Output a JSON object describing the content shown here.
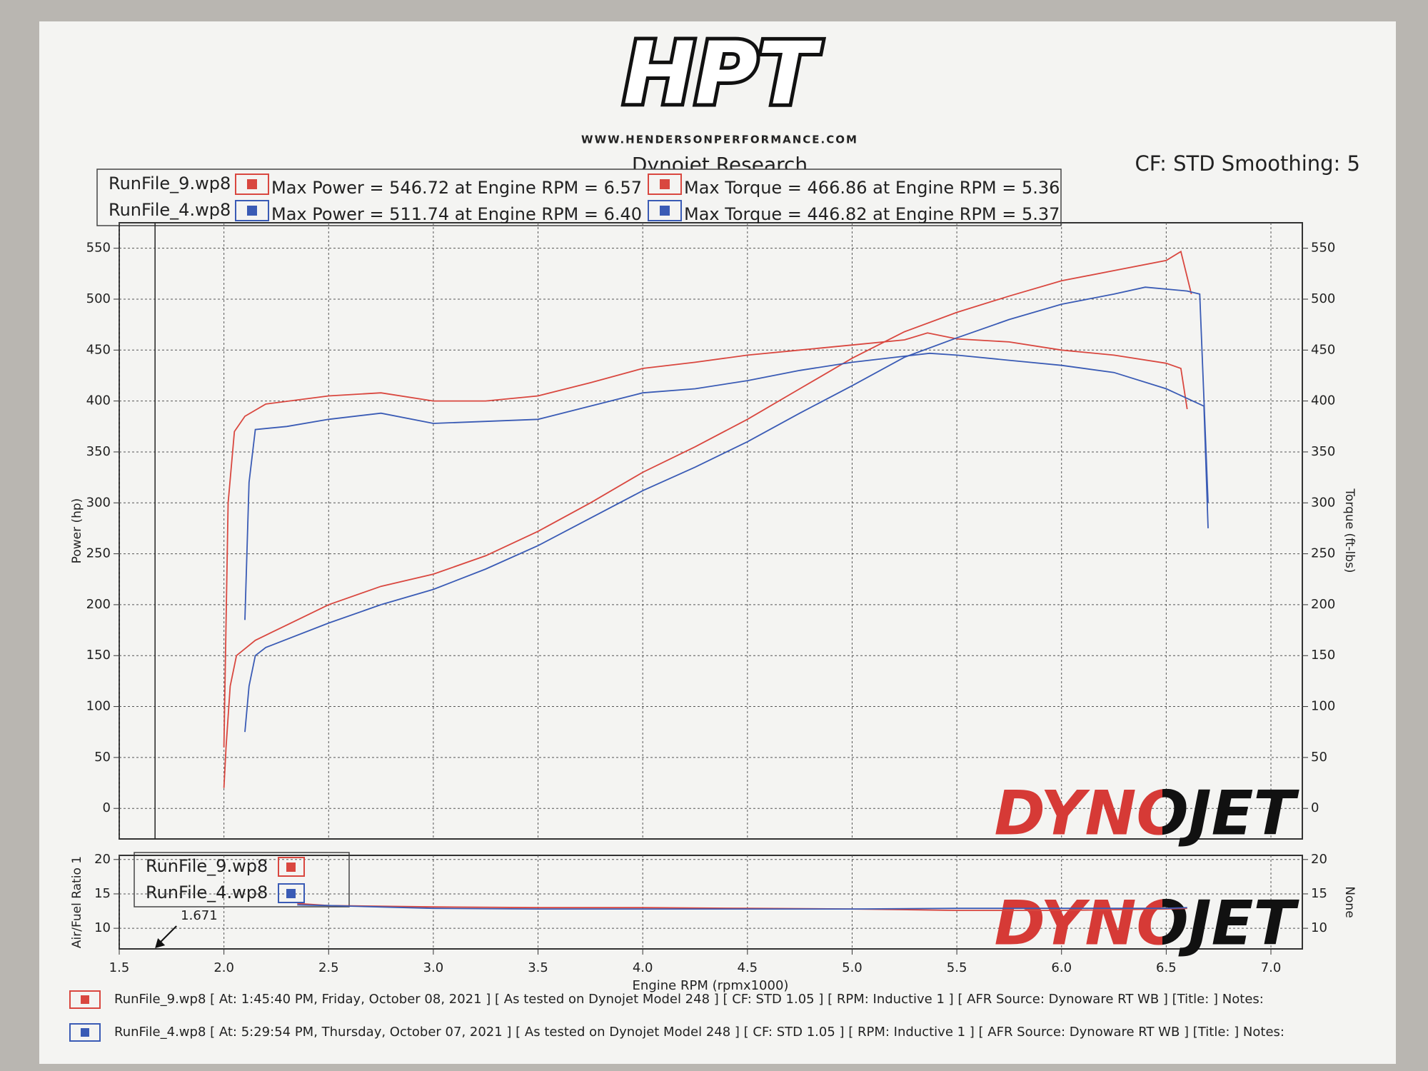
{
  "header": {
    "logo": "HPT",
    "website": "WWW.HENDERSONPERFORMANCE.COM",
    "settings": "CF: STD Smoothing: 5",
    "brand": "DYNOJET"
  },
  "chart_data": [
    {
      "type": "line",
      "title": "Dynojet Research",
      "y_label": "Power (hp)",
      "y2_label": "Torque (ft-lbs)",
      "xlim": [
        1.5,
        7.15
      ],
      "ylim": [
        -30,
        575
      ],
      "yticks": [
        0,
        50,
        100,
        150,
        200,
        250,
        300,
        350,
        400,
        450,
        500,
        550
      ],
      "y2lim": [
        -30,
        575
      ],
      "y2ticks": [
        0,
        50,
        100,
        150,
        200,
        250,
        300,
        350,
        400,
        450,
        500,
        550
      ],
      "grid": true,
      "legend_runs": [
        "RunFile_9.wp8",
        "RunFile_4.wp8"
      ],
      "series": [
        {
          "name": "Max Power = 546.72 at Engine RPM = 6.57",
          "color": "#d9473f",
          "x": [
            2.0,
            2.01,
            2.03,
            2.06,
            2.15,
            2.3,
            2.5,
            2.75,
            3.0,
            3.25,
            3.5,
            3.75,
            4.0,
            4.25,
            4.5,
            4.75,
            5.0,
            5.25,
            5.5,
            5.75,
            6.0,
            6.25,
            6.5,
            6.57,
            6.62
          ],
          "values": [
            20,
            60,
            120,
            150,
            165,
            180,
            200,
            218,
            230,
            248,
            272,
            300,
            330,
            355,
            382,
            412,
            442,
            468,
            487,
            503,
            518,
            528,
            538,
            546.72,
            505
          ]
        },
        {
          "name": "Max Torque = 466.86 at Engine RPM = 5.36",
          "color": "#d9473f",
          "axis": "y2",
          "x": [
            2.0,
            2.02,
            2.05,
            2.1,
            2.2,
            2.5,
            2.75,
            3.0,
            3.25,
            3.5,
            3.75,
            4.0,
            4.25,
            4.5,
            4.75,
            5.0,
            5.25,
            5.36,
            5.5,
            5.75,
            6.0,
            6.25,
            6.5,
            6.57,
            6.6
          ],
          "values": [
            60,
            300,
            370,
            385,
            397,
            405,
            408,
            400,
            400,
            405,
            418,
            432,
            438,
            445,
            450,
            455,
            460,
            466.86,
            461,
            458,
            450,
            445,
            437,
            432,
            392
          ]
        },
        {
          "name": "Max Power = 511.74 at Engine RPM = 6.40",
          "color": "#3a5bb5",
          "x": [
            2.1,
            2.12,
            2.15,
            2.2,
            2.5,
            2.75,
            3.0,
            3.25,
            3.5,
            3.75,
            4.0,
            4.25,
            4.5,
            4.75,
            5.0,
            5.25,
            5.5,
            5.75,
            6.0,
            6.25,
            6.4,
            6.6,
            6.66,
            6.7
          ],
          "values": [
            75,
            120,
            150,
            158,
            182,
            200,
            215,
            235,
            258,
            285,
            312,
            335,
            360,
            388,
            415,
            443,
            462,
            480,
            495,
            505,
            511.74,
            508,
            505,
            300
          ]
        },
        {
          "name": "Max Torque = 446.82 at Engine RPM = 5.37",
          "color": "#3a5bb5",
          "axis": "y2",
          "x": [
            2.1,
            2.12,
            2.15,
            2.3,
            2.5,
            2.75,
            3.0,
            3.25,
            3.5,
            3.75,
            4.0,
            4.25,
            4.5,
            4.75,
            5.0,
            5.25,
            5.37,
            5.5,
            5.75,
            6.0,
            6.25,
            6.5,
            6.68,
            6.7
          ],
          "values": [
            185,
            320,
            372,
            375,
            382,
            388,
            378,
            380,
            382,
            395,
            408,
            412,
            420,
            430,
            438,
            444,
            446.82,
            445,
            440,
            435,
            428,
            412,
            395,
            275
          ]
        }
      ]
    },
    {
      "type": "line",
      "x_label": "Engine RPM (rpmx1000)",
      "y_label": "Air/Fuel Ratio 1",
      "y2_label": "None",
      "xlim": [
        1.5,
        7.15
      ],
      "xticks": [
        1.5,
        {
          "value": 2,
          "label": "2.0"
        },
        2.5,
        {
          "value": 3,
          "label": "3.0"
        },
        3.5,
        {
          "value": 4,
          "label": "4.0"
        },
        4.5,
        {
          "value": 5,
          "label": "5.0"
        },
        5.5,
        {
          "value": 6,
          "label": "6.0"
        },
        6.5,
        {
          "value": 7,
          "label": "7.0"
        }
      ],
      "ylim": [
        7,
        20.6
      ],
      "yticks": [
        10,
        15,
        20
      ],
      "y2lim": [
        7,
        20.6
      ],
      "y2ticks": [
        10,
        15,
        20
      ],
      "grid": true,
      "cursor": {
        "x": 1.671
      },
      "series": [
        {
          "name": "RunFile_9.wp8",
          "color": "#d9473f",
          "x": [
            2.35,
            2.5,
            3.0,
            3.5,
            4.0,
            4.5,
            5.0,
            5.5,
            6.0,
            6.5,
            6.6
          ],
          "values": [
            13.6,
            13.3,
            13.1,
            13.0,
            13.0,
            12.9,
            12.8,
            12.6,
            12.6,
            12.8,
            12.9
          ]
        },
        {
          "name": "RunFile_4.wp8",
          "color": "#3a5bb5",
          "x": [
            2.35,
            2.5,
            3.0,
            3.5,
            4.0,
            4.5,
            5.0,
            5.5,
            6.0,
            6.5,
            6.6
          ],
          "values": [
            13.4,
            13.3,
            12.9,
            12.8,
            12.8,
            12.8,
            12.8,
            12.9,
            12.9,
            12.9,
            13.0
          ]
        }
      ]
    }
  ],
  "footer": {
    "runs": [
      "RunFile_9.wp8 [ At: 1:45:40 PM, Friday, October 08, 2021 ] [ As tested on Dynojet Model 248 ] [ CF: STD 1.05 ] [ RPM: Inductive 1 ] [ AFR Source: Dynoware RT WB ] [Title: ]  Notes:",
      "RunFile_4.wp8 [ At: 5:29:54 PM, Thursday, October 07, 2021 ] [ As tested on Dynojet Model 248 ] [ CF: STD 1.05 ] [ RPM: Inductive 1 ] [ AFR Source: Dynoware RT WB ] [Title: ]  Notes:"
    ]
  }
}
